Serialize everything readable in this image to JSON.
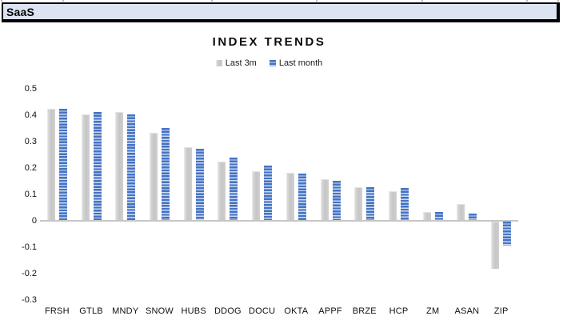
{
  "header": {
    "sheet_label": "SaaS"
  },
  "chart": {
    "legend_note": "striped square markers precede each legend entry"
  },
  "chart_data": {
    "type": "bar",
    "title": "INDEX TRENDS",
    "categories": [
      "FRSH",
      "GTLB",
      "MNDY",
      "SNOW",
      "HUBS",
      "DDOG",
      "DOCU",
      "OKTA",
      "APPF",
      "BRZE",
      "HCP",
      "ZM",
      "ASAN",
      "ZIP"
    ],
    "series": [
      {
        "name": "Last 3m",
        "color": "#c6c6c6",
        "style": "solid-gray",
        "values": [
          0.42,
          0.4,
          0.41,
          0.33,
          0.275,
          0.22,
          0.185,
          0.18,
          0.155,
          0.125,
          0.11,
          0.03,
          0.06,
          -0.175
        ]
      },
      {
        "name": "Last month",
        "color": "#4472c4",
        "stripe_color": "#cdd9ee",
        "style": "horizontal-stripes",
        "values": [
          0.42,
          0.41,
          0.4,
          0.35,
          0.27,
          0.235,
          0.205,
          0.175,
          0.15,
          0.125,
          0.12,
          0.03,
          0.025,
          -0.09
        ]
      }
    ],
    "xlabel": "",
    "ylabel": "",
    "ylim": [
      -0.3,
      0.5
    ],
    "yticks": [
      0.5,
      0.4,
      0.3,
      0.2,
      0.1,
      0,
      -0.1,
      -0.2,
      -0.3
    ],
    "grid": false,
    "legend_position": "top-center",
    "axis_color": "#c6c6c6"
  }
}
